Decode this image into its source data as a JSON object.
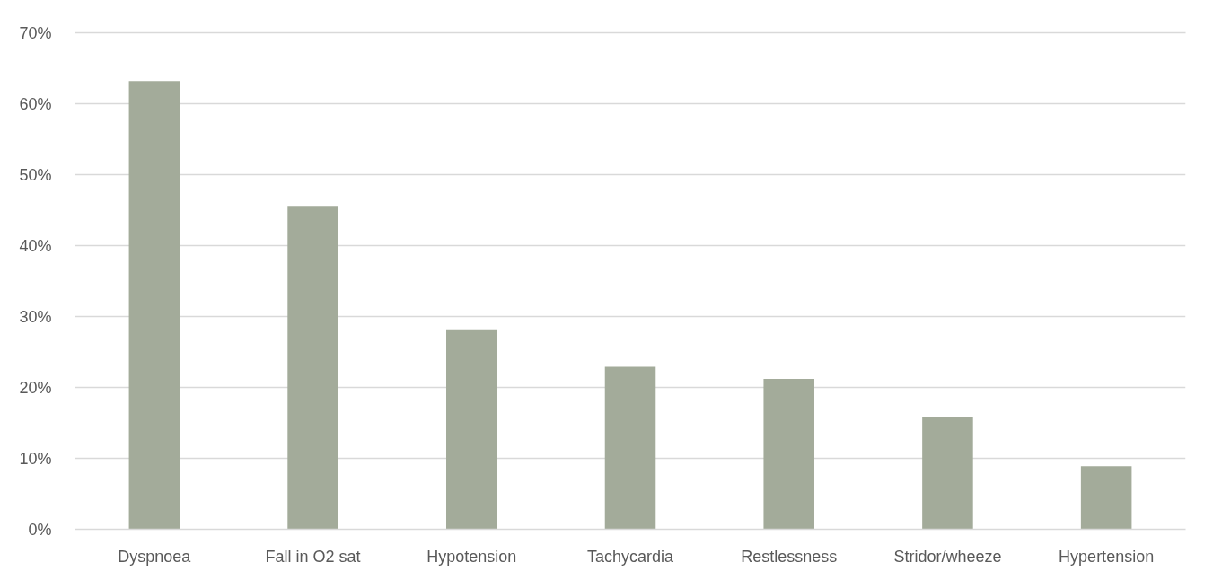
{
  "chart_data": {
    "type": "bar",
    "categories": [
      "Dyspnoea",
      "Fall in O2 sat",
      "Hypotension",
      "Tachycardia",
      "Restlessness",
      "Stridor/wheeze",
      "Hypertension"
    ],
    "values": [
      63.2,
      45.6,
      28.2,
      22.9,
      21.2,
      15.9,
      8.9
    ],
    "color": "#a3ab9a",
    "ylim": [
      0,
      70
    ],
    "yticks": [
      {
        "value": 0,
        "label": "0%"
      },
      {
        "value": 10,
        "label": "10%"
      },
      {
        "value": 20,
        "label": "20%"
      },
      {
        "value": 30,
        "label": "30%"
      },
      {
        "value": 40,
        "label": "40%"
      },
      {
        "value": 50,
        "label": "50%"
      },
      {
        "value": 60,
        "label": "60%"
      },
      {
        "value": 70,
        "label": "70%"
      }
    ],
    "grid": "y"
  }
}
